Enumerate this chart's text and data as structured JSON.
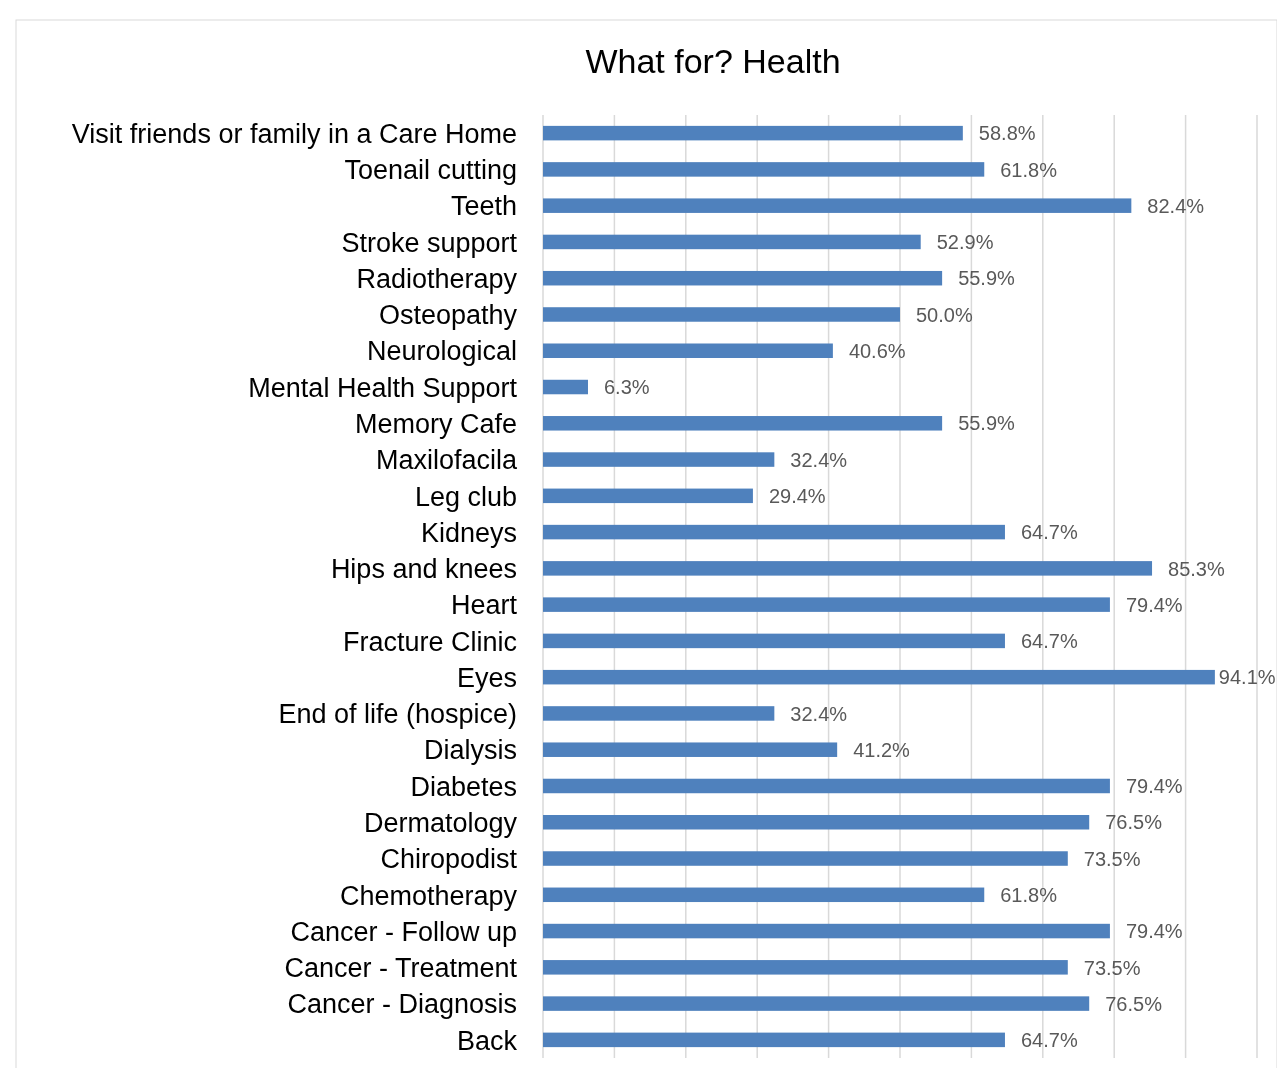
{
  "chart_data": {
    "type": "bar",
    "orientation": "horizontal",
    "title": "What for? Health",
    "categories": [
      "Visit friends or family in a Care Home",
      "Toenail cutting",
      "Teeth",
      "Stroke support",
      "Radiotherapy",
      "Osteopathy",
      "Neurological",
      "Mental Health Support",
      "Memory Cafe",
      "Maxilofacila",
      "Leg club",
      "Kidneys",
      "Hips and knees",
      "Heart",
      "Fracture Clinic",
      "Eyes",
      "End of life (hospice)",
      "Dialysis",
      "Diabetes",
      "Dermatology",
      "Chiropodist",
      "Chemotherapy",
      "Cancer - Follow up",
      "Cancer - Treatment",
      "Cancer - Diagnosis",
      "Back"
    ],
    "values": [
      58.8,
      61.8,
      82.4,
      52.9,
      55.9,
      50.0,
      40.6,
      6.3,
      55.9,
      32.4,
      29.4,
      64.7,
      85.3,
      79.4,
      64.7,
      94.1,
      32.4,
      41.2,
      79.4,
      76.5,
      73.5,
      61.8,
      79.4,
      73.5,
      76.5,
      64.7
    ],
    "value_labels": [
      "58.8%",
      "61.8%",
      "82.4%",
      "52.9%",
      "55.9%",
      "50.0%",
      "40.6%",
      "6.3%",
      "55.9%",
      "32.4%",
      "29.4%",
      "64.7%",
      "85.3%",
      "79.4%",
      "64.7%",
      "94.1%",
      "32.4%",
      "41.2%",
      "79.4%",
      "76.5%",
      "73.5%",
      "61.8%",
      "79.4%",
      "73.5%",
      "76.5%",
      "64.7%"
    ],
    "color": "#4f81bd",
    "xlim": [
      0,
      100
    ],
    "xticks": [
      {
        "value": 0,
        "label": null
      },
      {
        "value": 10,
        "label": null
      },
      {
        "value": 20,
        "label": null
      },
      {
        "value": 30,
        "label": null
      },
      {
        "value": 40,
        "label": null
      },
      {
        "value": 50,
        "label": null
      },
      {
        "value": 60,
        "label": null
      },
      {
        "value": 70,
        "label": null
      },
      {
        "value": 80,
        "label": null
      },
      {
        "value": 90,
        "label": null
      },
      {
        "value": 100,
        "label": null
      }
    ],
    "grid": "x",
    "tick_labels": "y"
  }
}
